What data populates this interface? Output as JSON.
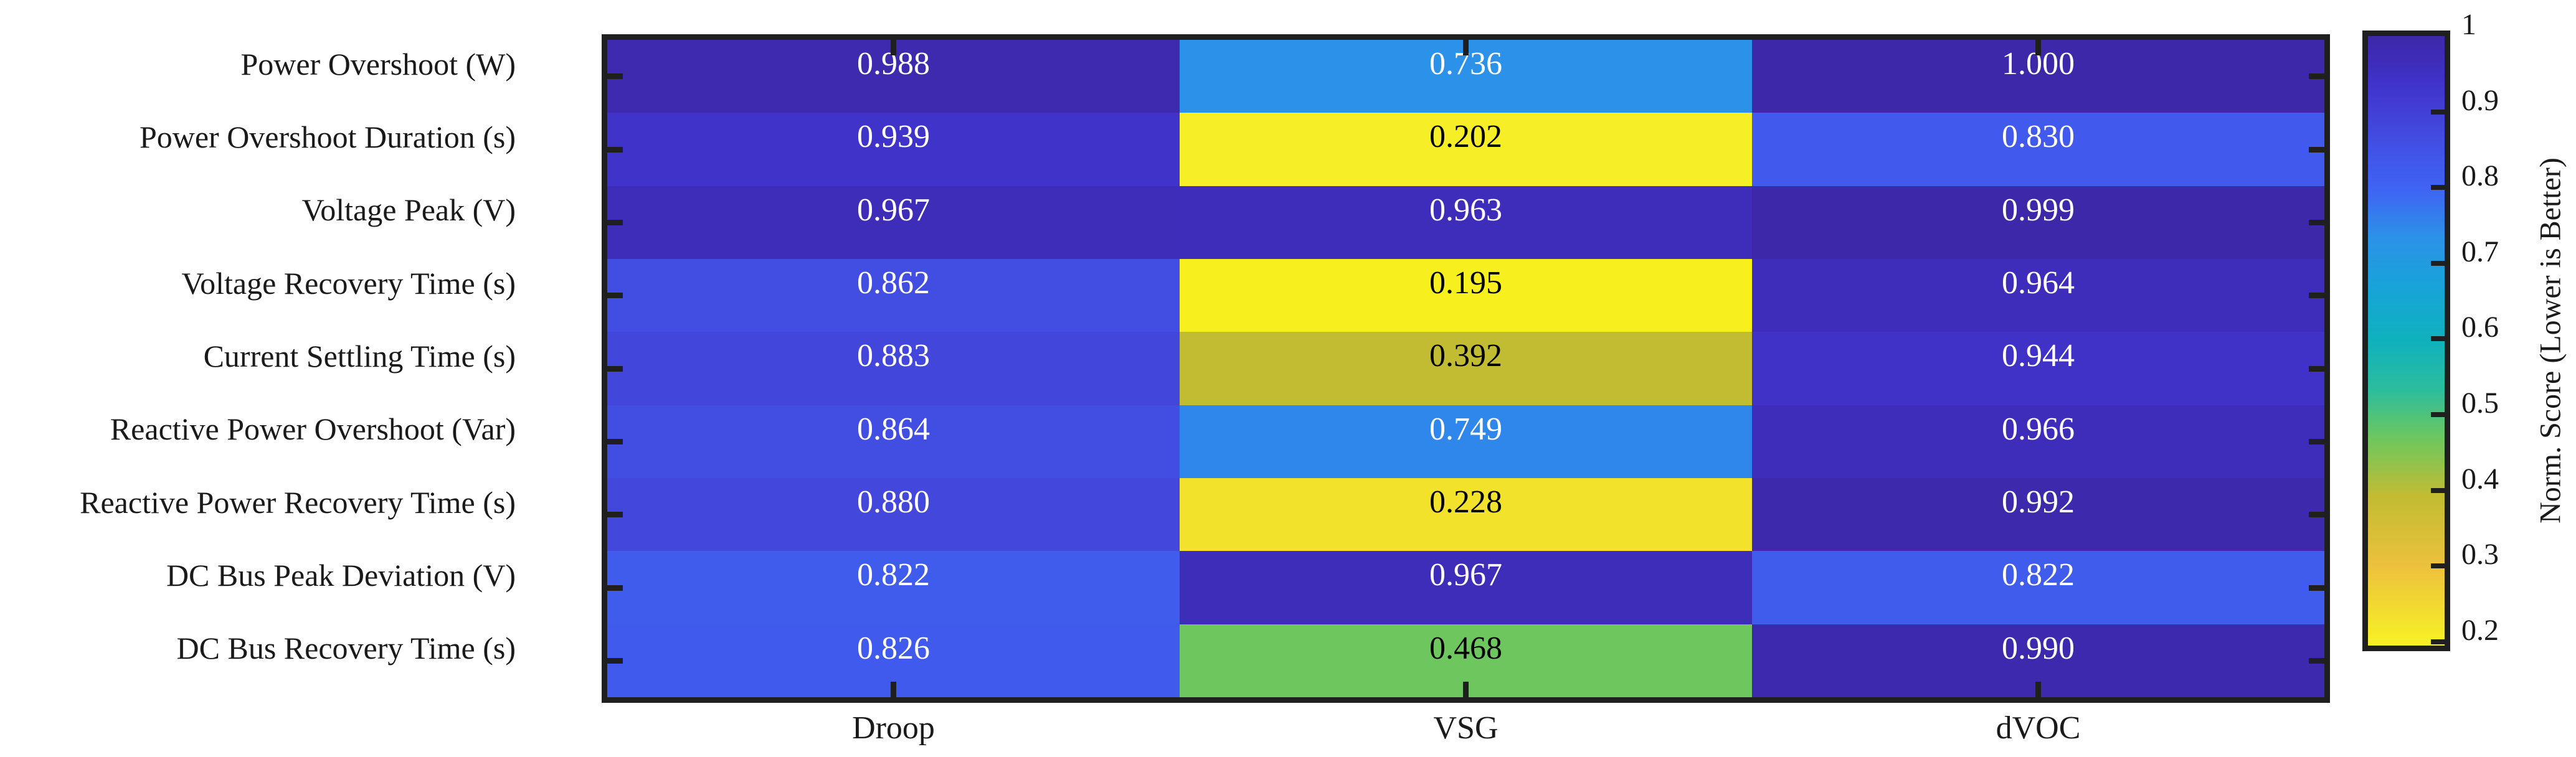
{
  "chart_data": {
    "type": "heatmap",
    "title": "",
    "rows": [
      "Power Overshoot (W)",
      "Power Overshoot Duration (s)",
      "Voltage Peak (V)",
      "Voltage Recovery Time (s)",
      "Current Settling Time (s)",
      "Reactive Power Overshoot (Var)",
      "Reactive Power Recovery Time (s)",
      "DC Bus Peak Deviation (V)",
      "DC Bus Recovery Time (s)"
    ],
    "columns": [
      "Droop",
      "VSG",
      "dVOC"
    ],
    "values": [
      [
        "0.988",
        "0.736",
        "1.000"
      ],
      [
        "0.939",
        "0.202",
        "0.830"
      ],
      [
        "0.967",
        "0.963",
        "0.999"
      ],
      [
        "0.862",
        "0.195",
        "0.964"
      ],
      [
        "0.883",
        "0.392",
        "0.944"
      ],
      [
        "0.864",
        "0.749",
        "0.966"
      ],
      [
        "0.880",
        "0.228",
        "0.992"
      ],
      [
        "0.822",
        "0.967",
        "0.822"
      ],
      [
        "0.826",
        "0.468",
        "0.990"
      ]
    ],
    "colorbar": {
      "label": "Norm. Score (Lower is Better)",
      "ticks": [
        {
          "label": "1",
          "value": 1.0
        },
        {
          "label": "0.9",
          "value": 0.9
        },
        {
          "label": "0.8",
          "value": 0.8
        },
        {
          "label": "0.7",
          "value": 0.7
        },
        {
          "label": "0.6",
          "value": 0.6
        },
        {
          "label": "0.5",
          "value": 0.5
        },
        {
          "label": "0.4",
          "value": 0.4
        },
        {
          "label": "0.3",
          "value": 0.3
        },
        {
          "label": "0.2",
          "value": 0.2
        }
      ],
      "vmin": 0.195,
      "vmax": 1.0,
      "colormap_name": "parula-reversed",
      "legend_position": "right"
    },
    "colormap_stops": [
      [
        0.0,
        "#3c28a8"
      ],
      [
        0.045,
        "#3e2dbb"
      ],
      [
        0.09,
        "#4136cf"
      ],
      [
        0.15,
        "#4347dc"
      ],
      [
        0.2,
        "#4156ea"
      ],
      [
        0.255,
        "#3f65f3"
      ],
      [
        0.33,
        "#2b92e8"
      ],
      [
        0.42,
        "#17a5d6"
      ],
      [
        0.5,
        "#0fb1bd"
      ],
      [
        0.58,
        "#2cbd9d"
      ],
      [
        0.661,
        "#6ec75e"
      ],
      [
        0.755,
        "#c2bc33"
      ],
      [
        0.87,
        "#ecc13c"
      ],
      [
        0.99,
        "#f6ee27"
      ],
      [
        1.0,
        "#f7f01e"
      ]
    ],
    "grid": false,
    "xlabel": "",
    "ylabel": ""
  },
  "styles": {
    "background": "#ffffff",
    "axis_color": "#1f1f1f",
    "label_color": "#1a1a1a",
    "cell_text_light": "#ffffff",
    "cell_text_dark": "#000000"
  }
}
